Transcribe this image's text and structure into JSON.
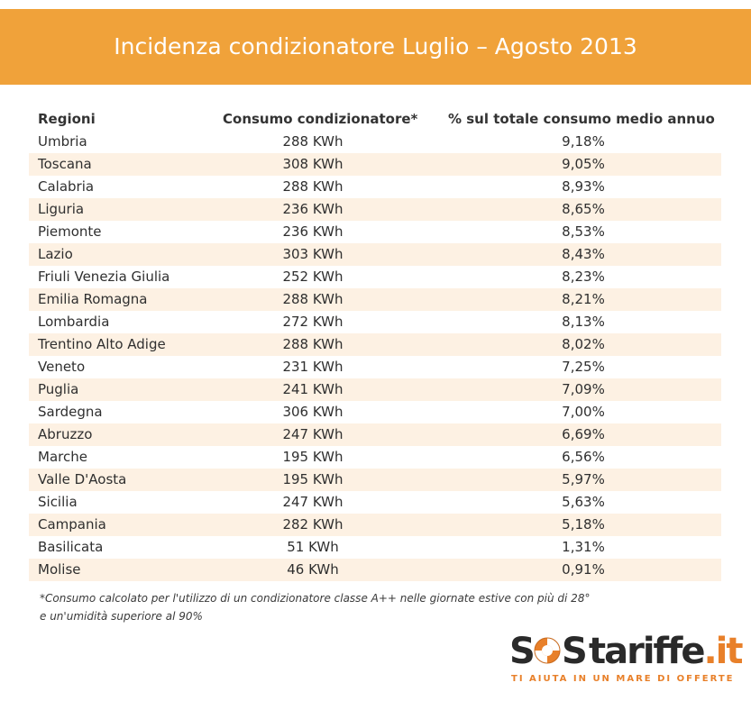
{
  "title": "Incidenza condizionatore Luglio – Agosto 2013",
  "chart_data": {
    "type": "table",
    "columns": [
      "Regioni",
      "Consumo condizionatore*",
      "% sul totale consumo medio annuo"
    ],
    "rows": [
      [
        "Umbria",
        "288 KWh",
        "9,18%"
      ],
      [
        "Toscana",
        "308 KWh",
        "9,05%"
      ],
      [
        "Calabria",
        "288 KWh",
        "8,93%"
      ],
      [
        "Liguria",
        "236 KWh",
        "8,65%"
      ],
      [
        "Piemonte",
        "236 KWh",
        "8,53%"
      ],
      [
        "Lazio",
        "303 KWh",
        "8,43%"
      ],
      [
        "Friuli Venezia Giulia",
        "252 KWh",
        "8,23%"
      ],
      [
        "Emilia Romagna",
        "288 KWh",
        "8,21%"
      ],
      [
        "Lombardia",
        "272 KWh",
        "8,13%"
      ],
      [
        "Trentino Alto Adige",
        "288 KWh",
        "8,02%"
      ],
      [
        "Veneto",
        "231 KWh",
        "7,25%"
      ],
      [
        "Puglia",
        "241 KWh",
        "7,09%"
      ],
      [
        "Sardegna",
        "306 KWh",
        "7,00%"
      ],
      [
        "Abruzzo",
        "247 KWh",
        "6,69%"
      ],
      [
        "Marche",
        "195 KWh",
        "6,56%"
      ],
      [
        "Valle D'Aosta",
        "195 KWh",
        "5,97%"
      ],
      [
        "Sicilia",
        "247 KWh",
        "5,63%"
      ],
      [
        "Campania",
        "282 KWh",
        "5,18%"
      ],
      [
        "Basilicata",
        "51 KWh",
        "1,31%"
      ],
      [
        "Molise",
        "46 KWh",
        "0,91%"
      ]
    ]
  },
  "footnote": {
    "line1": "*Consumo calcolato per l'utilizzo di un condizionatore classe A++ nelle giornate estive con più di 28°",
    "line2": " e un'umidità superiore al 90%"
  },
  "logo": {
    "letter_s1": "S",
    "letter_s2": "S",
    "name": "tariffe",
    "suffix": ".it",
    "tagline": "TI AIUTA IN UN MARE DI OFFERTE"
  },
  "colors": {
    "banner": "#f0a23a",
    "row_shade": "#fdf1e3",
    "logo_accent": "#e8802a",
    "logo_dark": "#2a2a2a"
  }
}
